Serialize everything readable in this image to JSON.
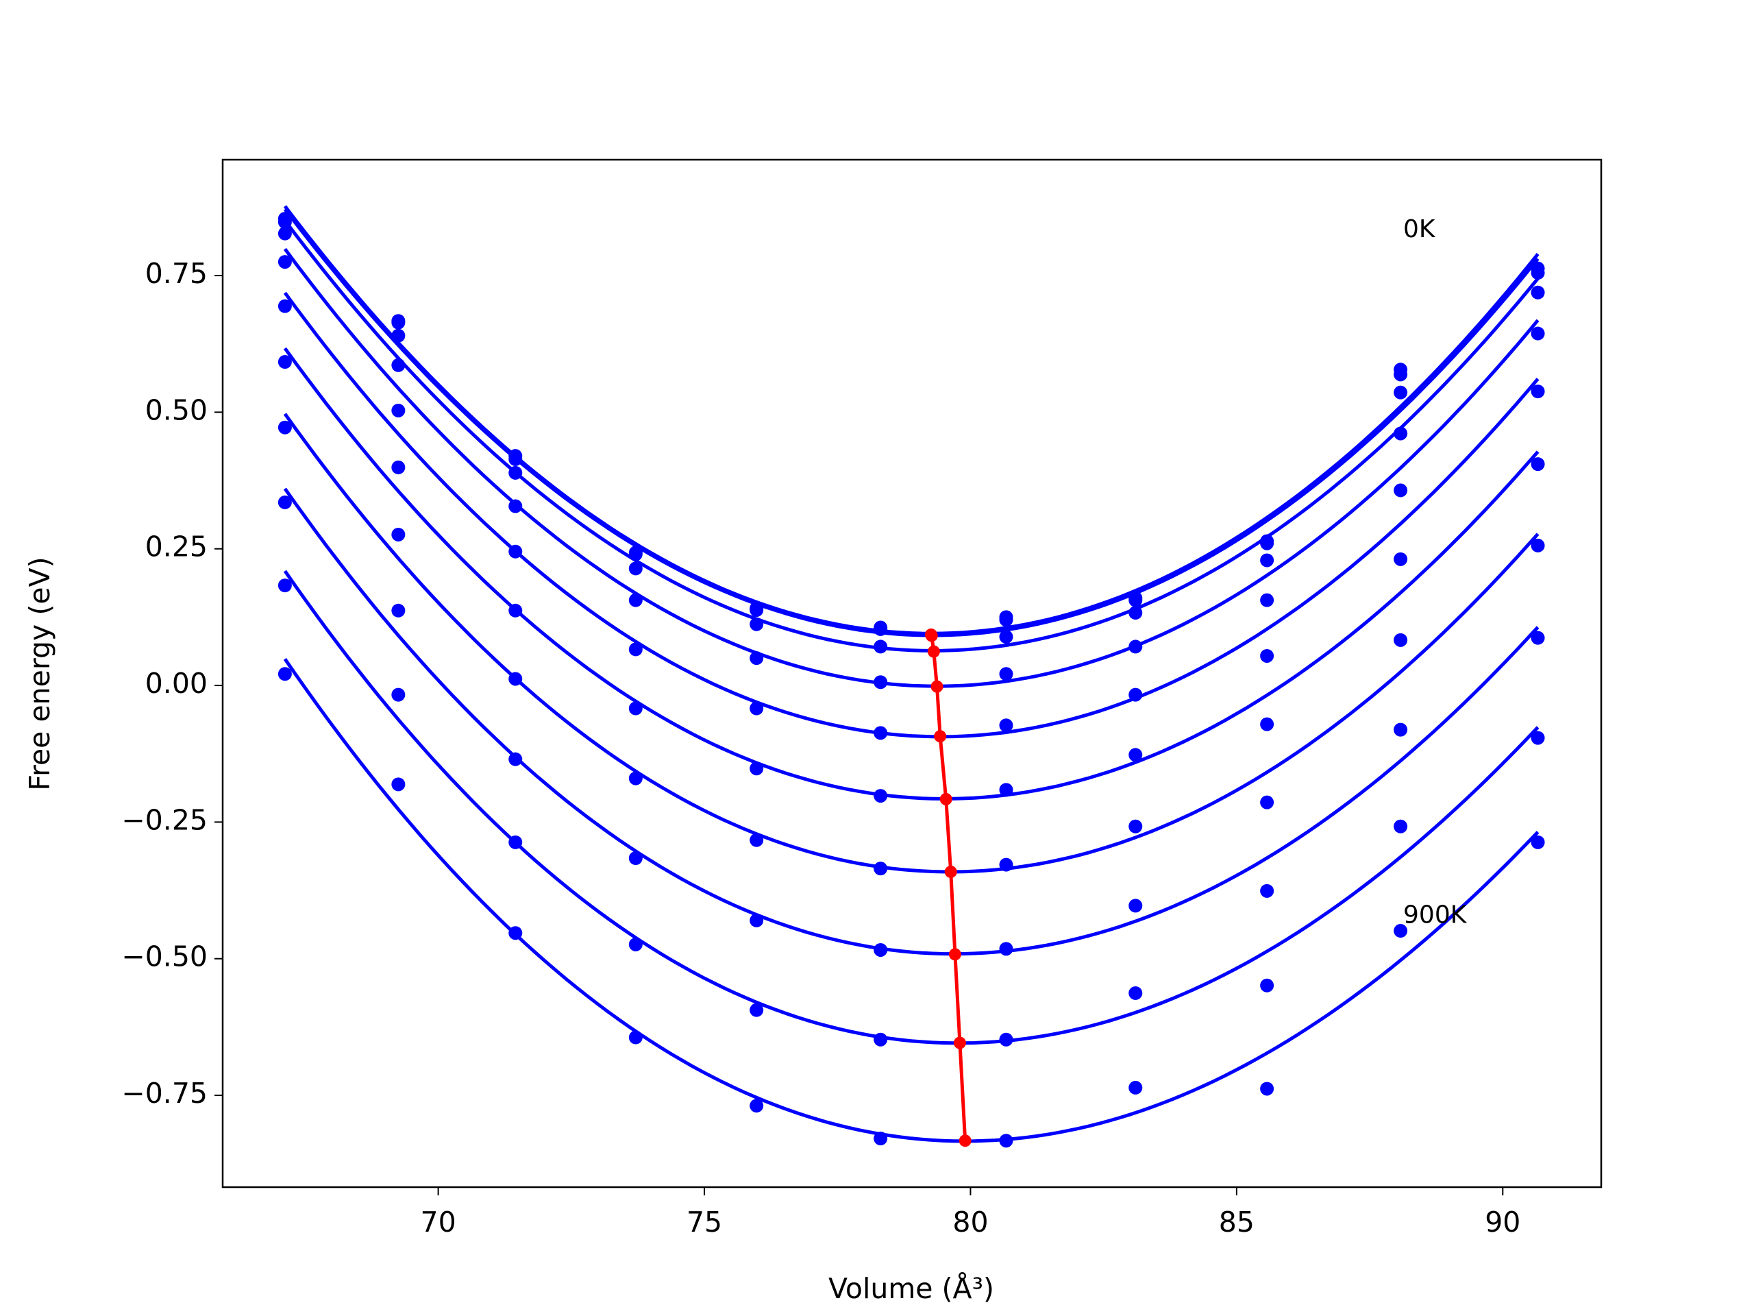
{
  "chart_data": {
    "type": "scatter",
    "xlabel": "Volume (Å³)",
    "ylabel": "Free energy (eV)",
    "x": [
      67.12,
      69.25,
      71.45,
      73.71,
      75.98,
      78.31,
      80.67,
      83.1,
      85.57,
      88.08,
      90.66
    ],
    "series": [
      {
        "color": "#0000ff",
        "values": [
          0.854,
          0.667,
          0.42,
          0.243,
          0.141,
          0.106,
          0.125,
          0.16,
          0.264,
          0.578,
          0.763
        ]
      },
      {
        "color": "#0000ff",
        "values": [
          0.848,
          0.664,
          0.414,
          0.24,
          0.138,
          0.103,
          0.12,
          0.156,
          0.26,
          0.569,
          0.755
        ]
      },
      {
        "color": "#0000ff",
        "values": [
          0.827,
          0.64,
          0.389,
          0.214,
          0.112,
          0.071,
          0.089,
          0.133,
          0.229,
          0.536,
          0.719
        ]
      },
      {
        "color": "#0000ff",
        "values": [
          0.775,
          0.586,
          0.328,
          0.156,
          0.05,
          0.006,
          0.021,
          0.071,
          0.156,
          0.461,
          0.644
        ]
      },
      {
        "color": "#0000ff",
        "values": [
          0.694,
          0.503,
          0.245,
          0.066,
          -0.042,
          -0.087,
          -0.073,
          -0.017,
          0.054,
          0.357,
          0.538
        ]
      },
      {
        "color": "#0000ff",
        "values": [
          0.592,
          0.399,
          0.137,
          -0.042,
          -0.152,
          -0.202,
          -0.191,
          -0.127,
          -0.071,
          0.231,
          0.405
        ]
      },
      {
        "color": "#0000ff",
        "values": [
          0.472,
          0.276,
          0.012,
          -0.17,
          -0.283,
          -0.335,
          -0.328,
          -0.258,
          -0.214,
          0.083,
          0.256
        ]
      },
      {
        "color": "#0000ff",
        "values": [
          0.335,
          0.137,
          -0.135,
          -0.316,
          -0.43,
          -0.484,
          -0.482,
          -0.403,
          -0.376,
          -0.081,
          0.087
        ]
      },
      {
        "color": "#0000ff",
        "values": [
          0.183,
          -0.017,
          -0.287,
          -0.474,
          -0.594,
          -0.648,
          -0.648,
          -0.563,
          -0.549,
          -0.258,
          -0.096
        ]
      },
      {
        "color": "#0000ff",
        "values": [
          0.021,
          -0.181,
          -0.453,
          -0.644,
          -0.769,
          -0.829,
          -0.833,
          -0.736,
          -0.738,
          -0.449,
          -0.287
        ]
      }
    ],
    "minima": {
      "color": "#ff0000",
      "x": [
        79.26,
        79.27,
        79.31,
        79.37,
        79.43,
        79.54,
        79.63,
        79.71,
        79.8,
        79.9
      ],
      "values": [
        0.093,
        0.091,
        0.062,
        -0.002,
        -0.093,
        -0.208,
        -0.341,
        -0.492,
        -0.654,
        -0.833
      ]
    },
    "annotations": [
      {
        "text": "0K",
        "x": 88.13,
        "y": 0.833
      },
      {
        "text": "900K",
        "x": 88.13,
        "y": -0.422
      }
    ],
    "xlim": [
      65.95,
      91.85
    ],
    "ylim": [
      -0.918,
      0.962
    ],
    "xticks": [
      70,
      75,
      80,
      85,
      90
    ],
    "yticks": [
      {
        "value": -0.75,
        "label": "−0.75"
      },
      {
        "value": -0.5,
        "label": "−0.50"
      },
      {
        "value": -0.25,
        "label": "−0.25"
      },
      {
        "value": 0,
        "label": "0.00"
      },
      0.25,
      {
        "value": 0.5,
        "label": "0.50"
      },
      0.75
    ]
  }
}
